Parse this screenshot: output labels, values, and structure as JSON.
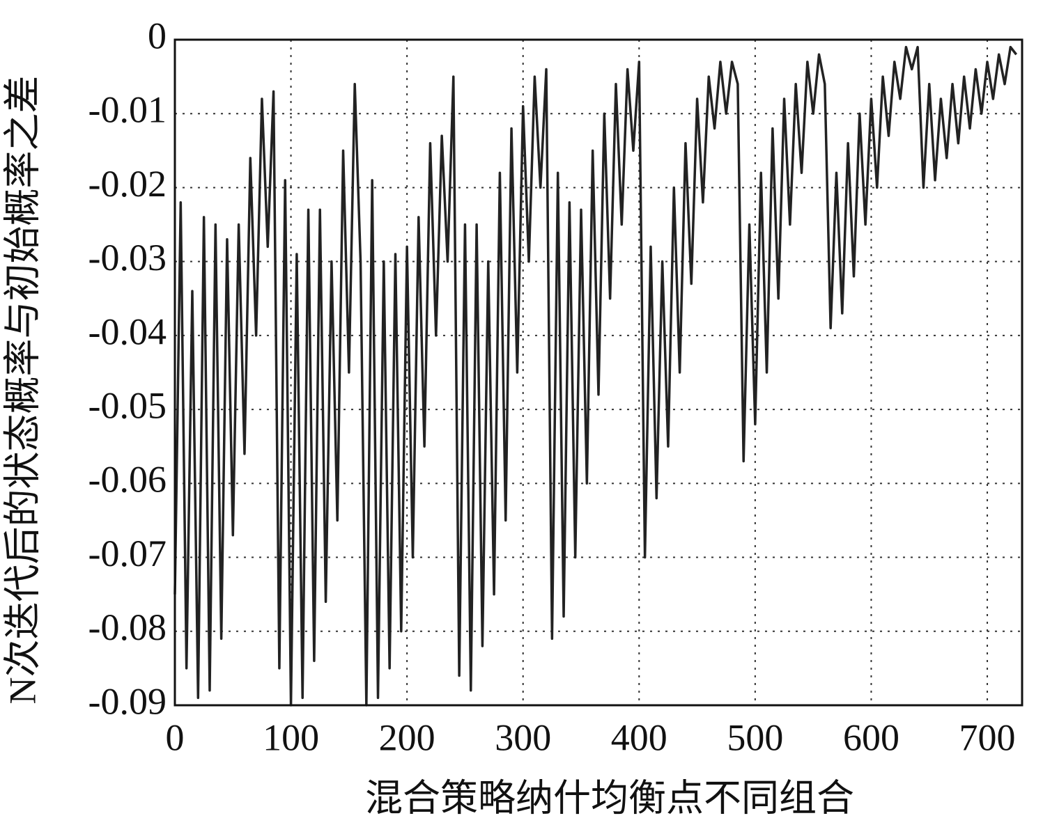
{
  "chart_data": {
    "type": "line",
    "xlabel": "混合策略纳什均衡点不同组合",
    "ylabel": "N次迭代后的状态概率与初始概率之差",
    "xlim": [
      0,
      730
    ],
    "ylim": [
      -0.09,
      0
    ],
    "xticks": [
      0,
      100,
      200,
      300,
      400,
      500,
      600,
      700
    ],
    "yticks": [
      0,
      -0.01,
      -0.02,
      -0.03,
      -0.04,
      -0.05,
      -0.06,
      -0.07,
      -0.08,
      -0.09
    ],
    "grid": true,
    "series": [
      {
        "color": "#222222",
        "x": [
          0,
          5,
          10,
          15,
          20,
          25,
          30,
          35,
          40,
          45,
          50,
          55,
          60,
          65,
          70,
          75,
          80,
          85,
          90,
          95,
          100,
          105,
          110,
          115,
          120,
          125,
          130,
          135,
          140,
          145,
          150,
          155,
          160,
          165,
          170,
          175,
          180,
          185,
          190,
          195,
          200,
          205,
          210,
          215,
          220,
          225,
          230,
          235,
          240,
          245,
          250,
          255,
          260,
          265,
          270,
          275,
          280,
          285,
          290,
          295,
          300,
          305,
          310,
          315,
          320,
          325,
          330,
          335,
          340,
          345,
          350,
          355,
          360,
          365,
          370,
          375,
          380,
          385,
          390,
          395,
          400,
          405,
          410,
          415,
          420,
          425,
          430,
          435,
          440,
          445,
          450,
          455,
          460,
          465,
          470,
          475,
          480,
          485,
          490,
          495,
          500,
          505,
          510,
          515,
          520,
          525,
          530,
          535,
          540,
          545,
          550,
          555,
          560,
          565,
          570,
          575,
          580,
          585,
          590,
          595,
          600,
          605,
          610,
          615,
          620,
          625,
          630,
          635,
          640,
          645,
          650,
          655,
          660,
          665,
          670,
          675,
          680,
          685,
          690,
          695,
          700,
          705,
          710,
          715,
          720,
          725
        ],
        "values": [
          -0.075,
          -0.022,
          -0.085,
          -0.034,
          -0.089,
          -0.024,
          -0.088,
          -0.025,
          -0.081,
          -0.027,
          -0.067,
          -0.025,
          -0.056,
          -0.016,
          -0.04,
          -0.008,
          -0.028,
          -0.007,
          -0.085,
          -0.019,
          -0.09,
          -0.029,
          -0.089,
          -0.023,
          -0.084,
          -0.023,
          -0.076,
          -0.03,
          -0.065,
          -0.015,
          -0.045,
          -0.006,
          -0.03,
          -0.09,
          -0.019,
          -0.089,
          -0.03,
          -0.085,
          -0.029,
          -0.08,
          -0.028,
          -0.07,
          -0.024,
          -0.055,
          -0.014,
          -0.04,
          -0.013,
          -0.03,
          -0.005,
          -0.086,
          -0.025,
          -0.088,
          -0.025,
          -0.082,
          -0.03,
          -0.075,
          -0.018,
          -0.065,
          -0.012,
          -0.045,
          -0.009,
          -0.03,
          -0.005,
          -0.02,
          -0.004,
          -0.081,
          -0.018,
          -0.078,
          -0.022,
          -0.07,
          -0.023,
          -0.06,
          -0.015,
          -0.048,
          -0.01,
          -0.035,
          -0.006,
          -0.025,
          -0.004,
          -0.015,
          -0.003,
          -0.07,
          -0.028,
          -0.062,
          -0.03,
          -0.055,
          -0.02,
          -0.045,
          -0.014,
          -0.033,
          -0.008,
          -0.022,
          -0.005,
          -0.012,
          -0.003,
          -0.01,
          -0.003,
          -0.006,
          -0.057,
          -0.025,
          -0.052,
          -0.018,
          -0.045,
          -0.012,
          -0.035,
          -0.008,
          -0.025,
          -0.006,
          -0.018,
          -0.003,
          -0.01,
          -0.002,
          -0.006,
          -0.039,
          -0.018,
          -0.037,
          -0.014,
          -0.032,
          -0.01,
          -0.025,
          -0.008,
          -0.02,
          -0.005,
          -0.013,
          -0.003,
          -0.008,
          -0.001,
          -0.004,
          -0.001,
          -0.02,
          -0.006,
          -0.019,
          -0.008,
          -0.016,
          -0.006,
          -0.014,
          -0.005,
          -0.012,
          -0.004,
          -0.01,
          -0.003,
          -0.008,
          -0.002,
          -0.006,
          -0.001,
          -0.002
        ]
      }
    ]
  }
}
